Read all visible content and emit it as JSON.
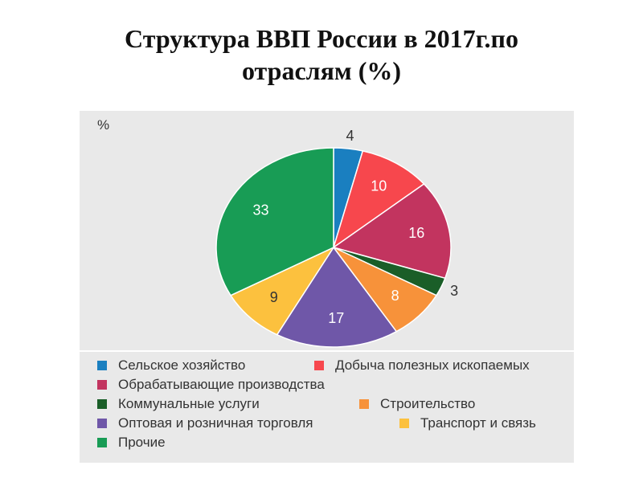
{
  "title_line1": "Структура ВВП России в 2017г.по",
  "title_line2": "отраслям (%)",
  "chart_data": {
    "type": "pie",
    "unit_label": "%",
    "categories": [
      "Сельское хозяйство",
      "Добыча полезных ископаемых",
      "Обрабатывающие производства",
      "Коммунальные услуги",
      "Строительство",
      "Оптовая и розничная торговля",
      "Транспорт и связь",
      "Прочие"
    ],
    "values": [
      4,
      10,
      16,
      3,
      8,
      17,
      9,
      33
    ],
    "colors": [
      "#1a7fc0",
      "#f7474d",
      "#c2345f",
      "#1a5e28",
      "#f7923a",
      "#6f57a8",
      "#fcc13e",
      "#189c55"
    ],
    "grid": false,
    "legend_position": "bottom"
  }
}
